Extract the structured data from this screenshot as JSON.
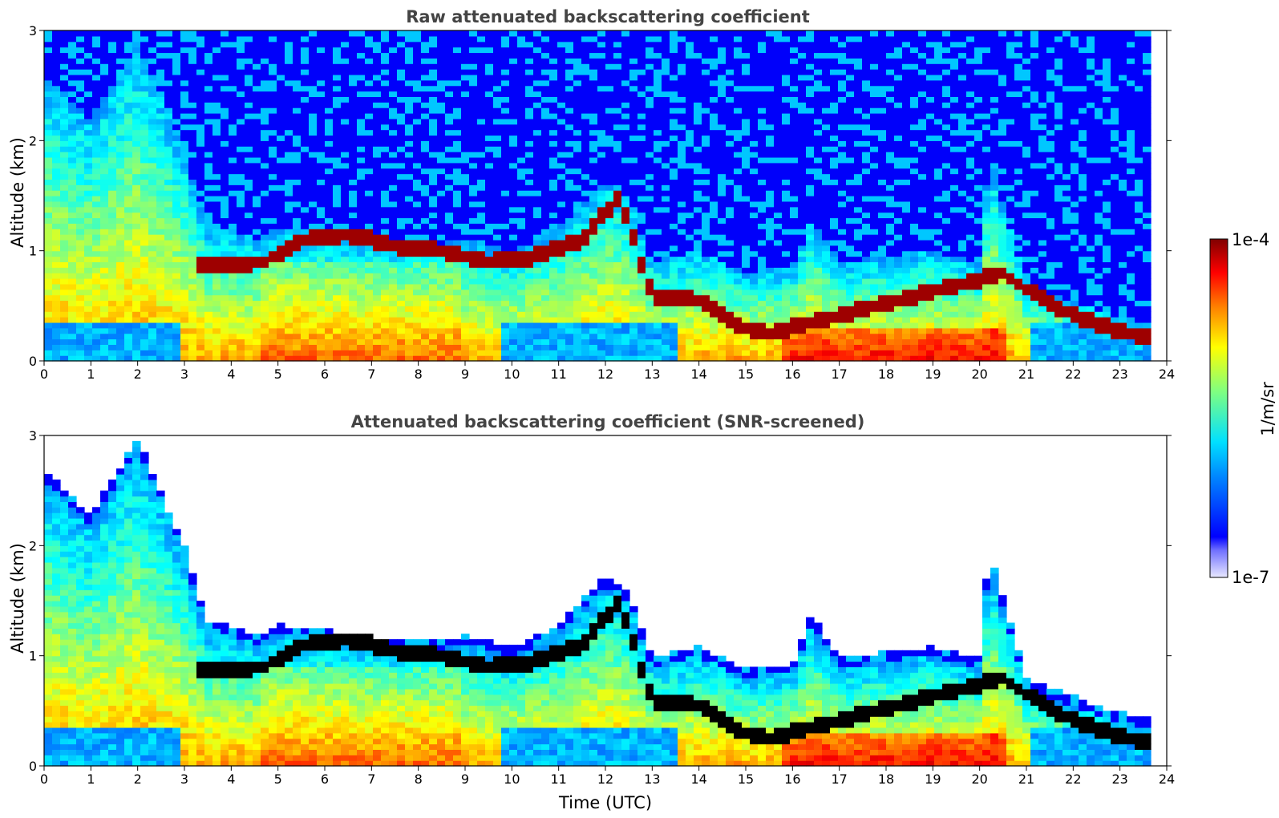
{
  "chart_data": [
    {
      "type": "heatmap",
      "title": "Raw attenuated backscattering coefficient",
      "xlabel": "",
      "ylabel": "Altitude (km)",
      "xlim": [
        0,
        24
      ],
      "ylim": [
        0,
        3
      ],
      "x_ticks": [
        "0",
        "1",
        "2",
        "3",
        "4",
        "5",
        "6",
        "7",
        "8",
        "9",
        "10",
        "11",
        "12",
        "13",
        "14",
        "15",
        "16",
        "17",
        "18",
        "19",
        "20",
        "21",
        "22",
        "23",
        "24"
      ],
      "y_ticks": [
        "0",
        "1",
        "2",
        "3"
      ],
      "data_end_time": 23.7,
      "screened": false,
      "aerosol_top_km": [
        [
          0,
          2.6
        ],
        [
          1,
          2.2
        ],
        [
          2,
          2.9
        ],
        [
          3,
          1.9
        ],
        [
          3.5,
          1.2
        ],
        [
          4,
          1.2
        ],
        [
          4.5,
          1.1
        ],
        [
          5,
          1.2
        ],
        [
          6,
          1.15
        ],
        [
          7,
          1.1
        ],
        [
          8,
          1.05
        ],
        [
          9,
          1.1
        ],
        [
          10,
          1.0
        ],
        [
          11,
          1.2
        ],
        [
          12,
          1.65
        ],
        [
          12.5,
          1.5
        ],
        [
          13,
          0.9
        ],
        [
          14,
          1.0
        ],
        [
          15,
          0.8
        ],
        [
          16,
          0.85
        ],
        [
          16.4,
          1.3
        ],
        [
          17,
          0.9
        ],
        [
          18,
          0.95
        ],
        [
          19,
          1.0
        ],
        [
          20,
          0.9
        ],
        [
          20.2,
          1.9
        ],
        [
          21,
          0.7
        ],
        [
          22,
          0.55
        ],
        [
          23,
          0.4
        ],
        [
          23.7,
          0.35
        ]
      ],
      "cloud_layer_km": [
        [
          3.3,
          0.86
        ],
        [
          4.7,
          0.9
        ],
        [
          5.5,
          1.1
        ],
        [
          6.5,
          1.15
        ],
        [
          7.5,
          1.05
        ],
        [
          8.5,
          1.0
        ],
        [
          9.5,
          0.9
        ],
        [
          10.5,
          0.95
        ],
        [
          11.5,
          1.1
        ],
        [
          12.3,
          1.5
        ],
        [
          13,
          0.6
        ],
        [
          14,
          0.55
        ],
        [
          15,
          0.3
        ],
        [
          15.5,
          0.25
        ],
        [
          20.5,
          0.8
        ],
        [
          21,
          0.65
        ],
        [
          22,
          0.42
        ],
        [
          23,
          0.27
        ],
        [
          23.7,
          0.2
        ]
      ]
    },
    {
      "type": "heatmap",
      "title": "Attenuated backscattering coefficient (SNR-screened)",
      "xlabel": "Time (UTC)",
      "ylabel": "Altitude (km)",
      "xlim": [
        0,
        24
      ],
      "ylim": [
        0,
        3
      ],
      "x_ticks": [
        "0",
        "1",
        "2",
        "3",
        "4",
        "5",
        "6",
        "7",
        "8",
        "9",
        "10",
        "11",
        "12",
        "13",
        "14",
        "15",
        "16",
        "17",
        "18",
        "19",
        "20",
        "21",
        "22",
        "23",
        "24"
      ],
      "y_ticks": [
        "0",
        "1",
        "2",
        "3"
      ],
      "data_end_time": 23.7,
      "screened": true
    }
  ],
  "colorbar": {
    "label": "1/m/sr",
    "max_label": "1e-4",
    "min_label": "1e-7",
    "colormap": "jet",
    "range": [
      1e-07,
      0.0001
    ]
  }
}
